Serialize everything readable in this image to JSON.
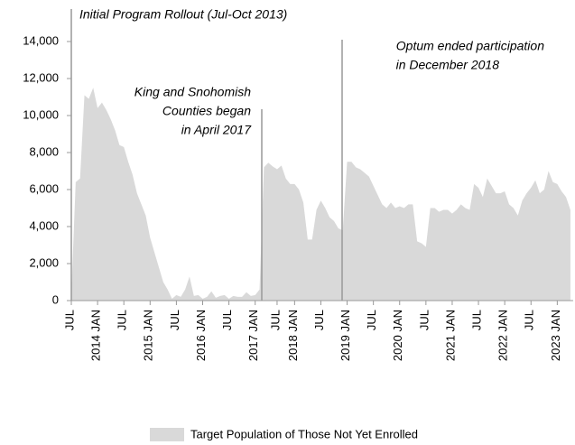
{
  "chart_data": {
    "type": "area",
    "categories": [
      "JUL",
      null,
      null,
      null,
      null,
      null,
      "2014 JAN",
      null,
      null,
      null,
      null,
      null,
      "JUL",
      null,
      null,
      null,
      null,
      null,
      "2015 JAN",
      null,
      null,
      null,
      null,
      null,
      "JUL",
      null,
      null,
      null,
      null,
      null,
      "2016 JAN",
      null,
      null,
      null,
      null,
      null,
      "JUL",
      null,
      null,
      null,
      null,
      null,
      "2017 JAN",
      null,
      null,
      null,
      null,
      "JUL",
      null,
      null,
      null,
      "2018 JAN",
      null,
      null,
      null,
      null,
      null,
      "JUL",
      null,
      null,
      null,
      null,
      null,
      "2019 JAN",
      null,
      null,
      null,
      null,
      null,
      "JUL",
      null,
      null,
      null,
      null,
      null,
      "2020 JAN",
      null,
      null,
      null,
      null,
      null,
      "JUL",
      null,
      null,
      null,
      null,
      null,
      "2021 JAN",
      null,
      null,
      null,
      null,
      null,
      "JUL",
      null,
      null,
      null,
      null,
      null,
      "2022 JAN",
      null,
      null,
      null,
      null,
      null,
      "JUL",
      null,
      null,
      null,
      null,
      null,
      "2023 JAN",
      null,
      null,
      null
    ],
    "series": [
      {
        "name": "Target Population of Those Not Yet Enrolled",
        "color": "#d9d9d9",
        "values": [
          300,
          6400,
          6600,
          11100,
          10900,
          11500,
          10400,
          10700,
          10300,
          9800,
          9200,
          8400,
          8300,
          7500,
          6800,
          5800,
          5200,
          4600,
          3400,
          2600,
          1800,
          1000,
          600,
          100,
          300,
          200,
          600,
          1300,
          250,
          300,
          100,
          200,
          500,
          150,
          250,
          300,
          100,
          250,
          200,
          200,
          450,
          250,
          300,
          600,
          7200,
          7450,
          7250,
          7100,
          7300,
          6600,
          6300,
          6300,
          6000,
          5300,
          3300,
          3300,
          4900,
          5400,
          5000,
          4500,
          4300,
          3900,
          3800,
          7500,
          7500,
          7200,
          7100,
          6900,
          6700,
          6200,
          5700,
          5200,
          5000,
          5300,
          5000,
          5100,
          5000,
          5200,
          5200,
          3200,
          3100,
          2900,
          5000,
          5000,
          4800,
          4900,
          4900,
          4700,
          4900,
          5200,
          5000,
          4900,
          6300,
          6100,
          5600,
          6600,
          6200,
          5800,
          5800,
          5900,
          5200,
          5000,
          4600,
          5400,
          5800,
          6100,
          6500,
          5800,
          6000,
          7000,
          6400,
          6300,
          5900,
          5600,
          4900
        ]
      }
    ],
    "ylim": [
      0,
      14000
    ],
    "yticks": [
      0,
      {
        "value": 2000,
        "label": "2,000"
      },
      {
        "value": 4000,
        "label": "4,000"
      },
      {
        "value": 6000,
        "label": "6,000"
      },
      {
        "value": 8000,
        "label": "8,000"
      },
      {
        "value": 10000,
        "label": "10,000"
      },
      {
        "value": 12000,
        "label": "12,000"
      },
      {
        "value": 14000,
        "label": "14,000"
      }
    ],
    "annotations": [
      {
        "lines": [
          "Initial Program Rollout (Jul-Oct 2013)"
        ]
      },
      {
        "lines": [
          "King and Snohomish",
          "Counties began",
          "in April 2017"
        ]
      },
      {
        "lines": [
          "Optum ended participation",
          "in December 2018"
        ]
      }
    ],
    "legend": "bottom"
  }
}
